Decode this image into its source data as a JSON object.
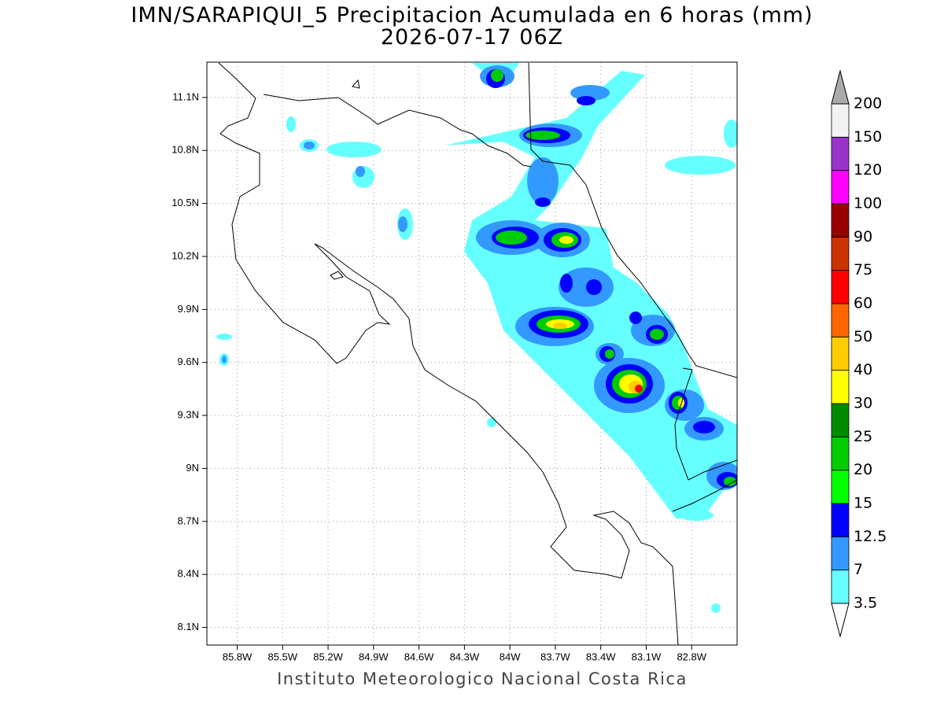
{
  "title": {
    "line1": "IMN/SARAPIQUI_5 Precipitacion Acumulada en 6 horas (mm)",
    "line2": "2026-07-17 06Z"
  },
  "map": {
    "lonlim": [
      -86,
      -82.5
    ],
    "latlim": [
      8,
      11.3
    ],
    "lon_ticks": [
      {
        "value": -85.8,
        "label": "85.8W"
      },
      {
        "value": -85.5,
        "label": "85.5W"
      },
      {
        "value": -85.2,
        "label": "85.2W"
      },
      {
        "value": -84.9,
        "label": "84.9W"
      },
      {
        "value": -84.6,
        "label": "84.6W"
      },
      {
        "value": -84.3,
        "label": "84.3W"
      },
      {
        "value": -84,
        "label": "84W"
      },
      {
        "value": -83.7,
        "label": "83.7W"
      },
      {
        "value": -83.4,
        "label": "83.4W"
      },
      {
        "value": -83.1,
        "label": "83.1W"
      },
      {
        "value": -82.8,
        "label": "82.8W"
      }
    ],
    "lat_ticks": [
      {
        "value": 11.1,
        "label": "11.1N"
      },
      {
        "value": 10.8,
        "label": "10.8N"
      },
      {
        "value": 10.5,
        "label": "10.5N"
      },
      {
        "value": 10.2,
        "label": "10.2N"
      },
      {
        "value": 9.9,
        "label": "9.9N"
      },
      {
        "value": 9.6,
        "label": "9.6N"
      },
      {
        "value": 9.3,
        "label": "9.3N"
      },
      {
        "value": 9,
        "label": "9N"
      },
      {
        "value": 8.7,
        "label": "8.7N"
      },
      {
        "value": 8.4,
        "label": "8.4N"
      },
      {
        "value": 8.1,
        "label": "8.1N"
      }
    ]
  },
  "colorbar": {
    "levels": [
      3.5,
      7,
      12.5,
      15,
      20,
      25,
      30,
      40,
      50,
      60,
      75,
      90,
      100,
      120,
      150,
      200
    ],
    "colors": [
      "#66ffff",
      "#3399ff",
      "#0000ff",
      "#00ff00",
      "#00cc00",
      "#008c00",
      "#ffff00",
      "#ffcc00",
      "#ff6600",
      "#ff0000",
      "#cc3300",
      "#990000",
      "#ff00ff",
      "#9933cc",
      "#f2f2f2"
    ],
    "over_color": "#aaaaaa",
    "under_color": "#ffffff"
  },
  "footer": "Instituto Meteorologico Nacional Costa Rica"
}
